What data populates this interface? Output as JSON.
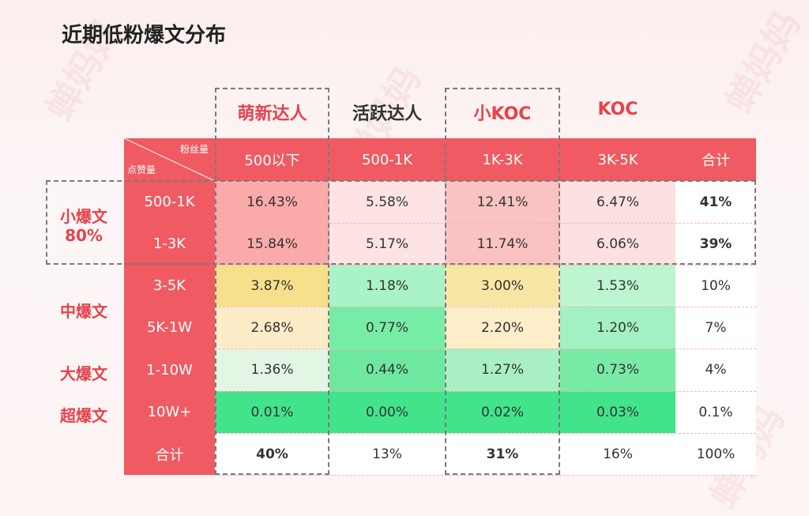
{
  "title": "近期低粉爆文分布",
  "watermark": "蝉妈妈",
  "groups": [
    "萌新达人",
    "活跃达人",
    "小KOC",
    "KOC"
  ],
  "corner": {
    "top_label": "粉丝量",
    "bottom_label": "点赞量"
  },
  "col_headers": [
    "500以下",
    "500-1K",
    "1K-3K",
    "3K-5K",
    "合计"
  ],
  "row_headers": [
    "500-1K",
    "1-3K",
    "3-5K",
    "5K-1W",
    "1-10W",
    "10W+",
    "合计"
  ],
  "categories": [
    {
      "label": "小爆文",
      "sub": "80%"
    },
    {
      "label": "中爆文"
    },
    {
      "label": "大爆文"
    },
    {
      "label": "超爆文"
    }
  ],
  "table": [
    [
      "16.43%",
      "5.58%",
      "12.41%",
      "6.47%",
      "41%"
    ],
    [
      "15.84%",
      "5.17%",
      "11.74%",
      "6.06%",
      "39%"
    ],
    [
      "3.87%",
      "1.18%",
      "3.00%",
      "1.53%",
      "10%"
    ],
    [
      "2.68%",
      "0.77%",
      "2.20%",
      "1.20%",
      "7%"
    ],
    [
      "1.36%",
      "0.44%",
      "1.27%",
      "0.73%",
      "4%"
    ],
    [
      "0.01%",
      "0.00%",
      "0.02%",
      "0.03%",
      "0.1%"
    ],
    [
      "40%",
      "13%",
      "31%",
      "16%",
      "100%"
    ]
  ],
  "chart_data": {
    "type": "heatmap",
    "title": "近期低粉爆文分布",
    "x_groups": [
      "萌新达人",
      "活跃达人",
      "小KOC",
      "KOC"
    ],
    "x_label": "粉丝量",
    "y_label": "点赞量",
    "x": [
      "500以下",
      "500-1K",
      "1K-3K",
      "3K-5K"
    ],
    "y": [
      "500-1K",
      "1-3K",
      "3-5K",
      "5K-1W",
      "1-10W",
      "10W+"
    ],
    "values": [
      [
        16.43,
        5.58,
        12.41,
        6.47
      ],
      [
        15.84,
        5.17,
        11.74,
        6.06
      ],
      [
        3.87,
        1.18,
        3.0,
        1.53
      ],
      [
        2.68,
        0.77,
        2.2,
        1.2
      ],
      [
        1.36,
        0.44,
        1.27,
        0.73
      ],
      [
        0.01,
        0.0,
        0.02,
        0.03
      ]
    ],
    "row_totals": [
      41,
      39,
      10,
      7,
      4,
      0.1
    ],
    "col_totals": [
      40,
      13,
      31,
      16
    ],
    "grand_total": 100,
    "unit": "%"
  },
  "colors": {
    "accent": "#f05a62",
    "title_red": "#e8424a",
    "cell_colors": [
      [
        "#fbaaaa",
        "#fde3e3",
        "#fbc2c2",
        "#fde0e0",
        "#ffffff"
      ],
      [
        "#fbaaaa",
        "#fde3e3",
        "#fbc2c2",
        "#fde0e0",
        "#ffffff"
      ],
      [
        "#f7e08c",
        "#a9f3c6",
        "#f8e6a4",
        "#bdf5d2",
        "#ffffff"
      ],
      [
        "#fdecc8",
        "#77eca7",
        "#fdeec9",
        "#a3f1c2",
        "#ffffff"
      ],
      [
        "#e3f6e3",
        "#6ee8a0",
        "#a8f0c3",
        "#79eaa6",
        "#ffffff"
      ],
      [
        "#41e48b",
        "#41e48b",
        "#41e48b",
        "#41e48b",
        "#ffffff"
      ],
      [
        "#ffffff",
        "#ffffff",
        "#ffffff",
        "#ffffff",
        "#ffffff"
      ]
    ]
  }
}
